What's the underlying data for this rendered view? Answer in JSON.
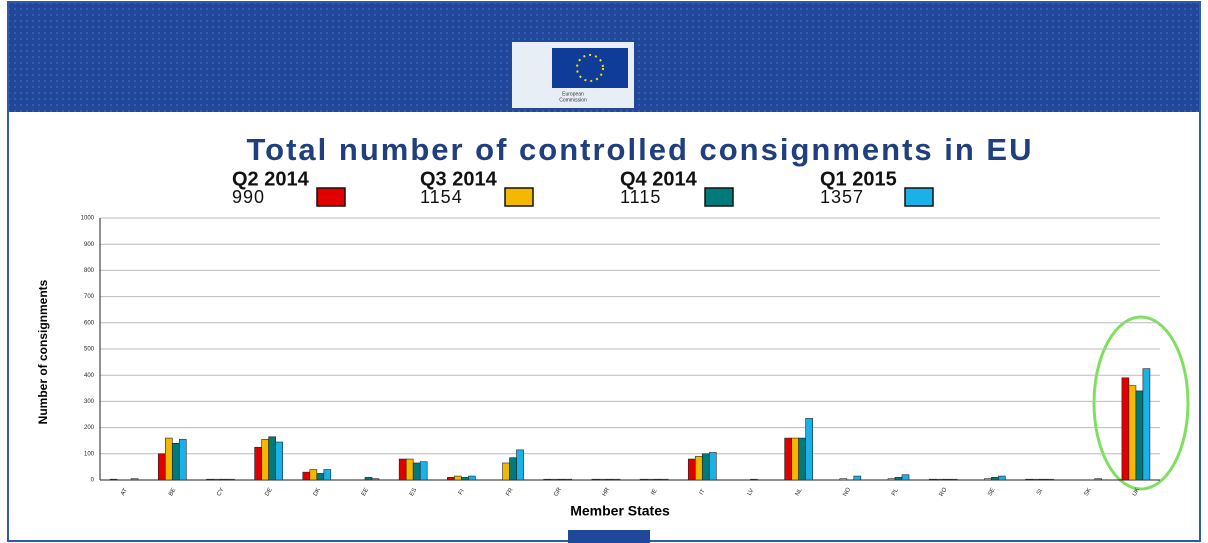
{
  "logo_text": [
    "European",
    "Commission"
  ],
  "chart_data": {
    "type": "bar",
    "title": "Total number of controlled consignments in EU",
    "y_label": "Number of consignments",
    "x_label": "Member States",
    "categories": [
      "AT",
      "BE",
      "CY",
      "DE",
      "DK",
      "EE",
      "ES",
      "FI",
      "FR",
      "GR",
      "HR",
      "IE",
      "IT",
      "LV",
      "NL",
      "NO",
      "PL",
      "RO",
      "SE",
      "SI",
      "SK",
      "UK"
    ],
    "series": [
      {
        "name": "Q2 2014",
        "total": 990,
        "color": "#e00000",
        "values": [
          3,
          100,
          3,
          125,
          30,
          0,
          80,
          10,
          0,
          3,
          3,
          3,
          80,
          0,
          160,
          0,
          0,
          3,
          0,
          3,
          0,
          390
        ]
      },
      {
        "name": "Q3 2014",
        "total": 1154,
        "color": "#f5b800",
        "values": [
          0,
          160,
          3,
          155,
          40,
          0,
          80,
          15,
          65,
          3,
          3,
          3,
          90,
          0,
          160,
          5,
          5,
          3,
          5,
          3,
          0,
          360
        ]
      },
      {
        "name": "Q4 2014",
        "total": 1115,
        "color": "#007a7a",
        "values": [
          0,
          140,
          3,
          165,
          25,
          10,
          65,
          10,
          85,
          3,
          3,
          3,
          100,
          3,
          160,
          0,
          10,
          3,
          10,
          3,
          0,
          340
        ]
      },
      {
        "name": "Q1 2015",
        "total": 1357,
        "color": "#1ab0e8",
        "values": [
          5,
          155,
          3,
          145,
          40,
          5,
          70,
          15,
          115,
          3,
          3,
          3,
          105,
          0,
          235,
          15,
          20,
          3,
          15,
          3,
          5,
          425
        ]
      }
    ],
    "ylim": [
      0,
      1000
    ],
    "yticks": [
      0,
      100,
      200,
      300,
      400,
      500,
      600,
      700,
      800,
      900,
      1000
    ],
    "grid": true
  }
}
